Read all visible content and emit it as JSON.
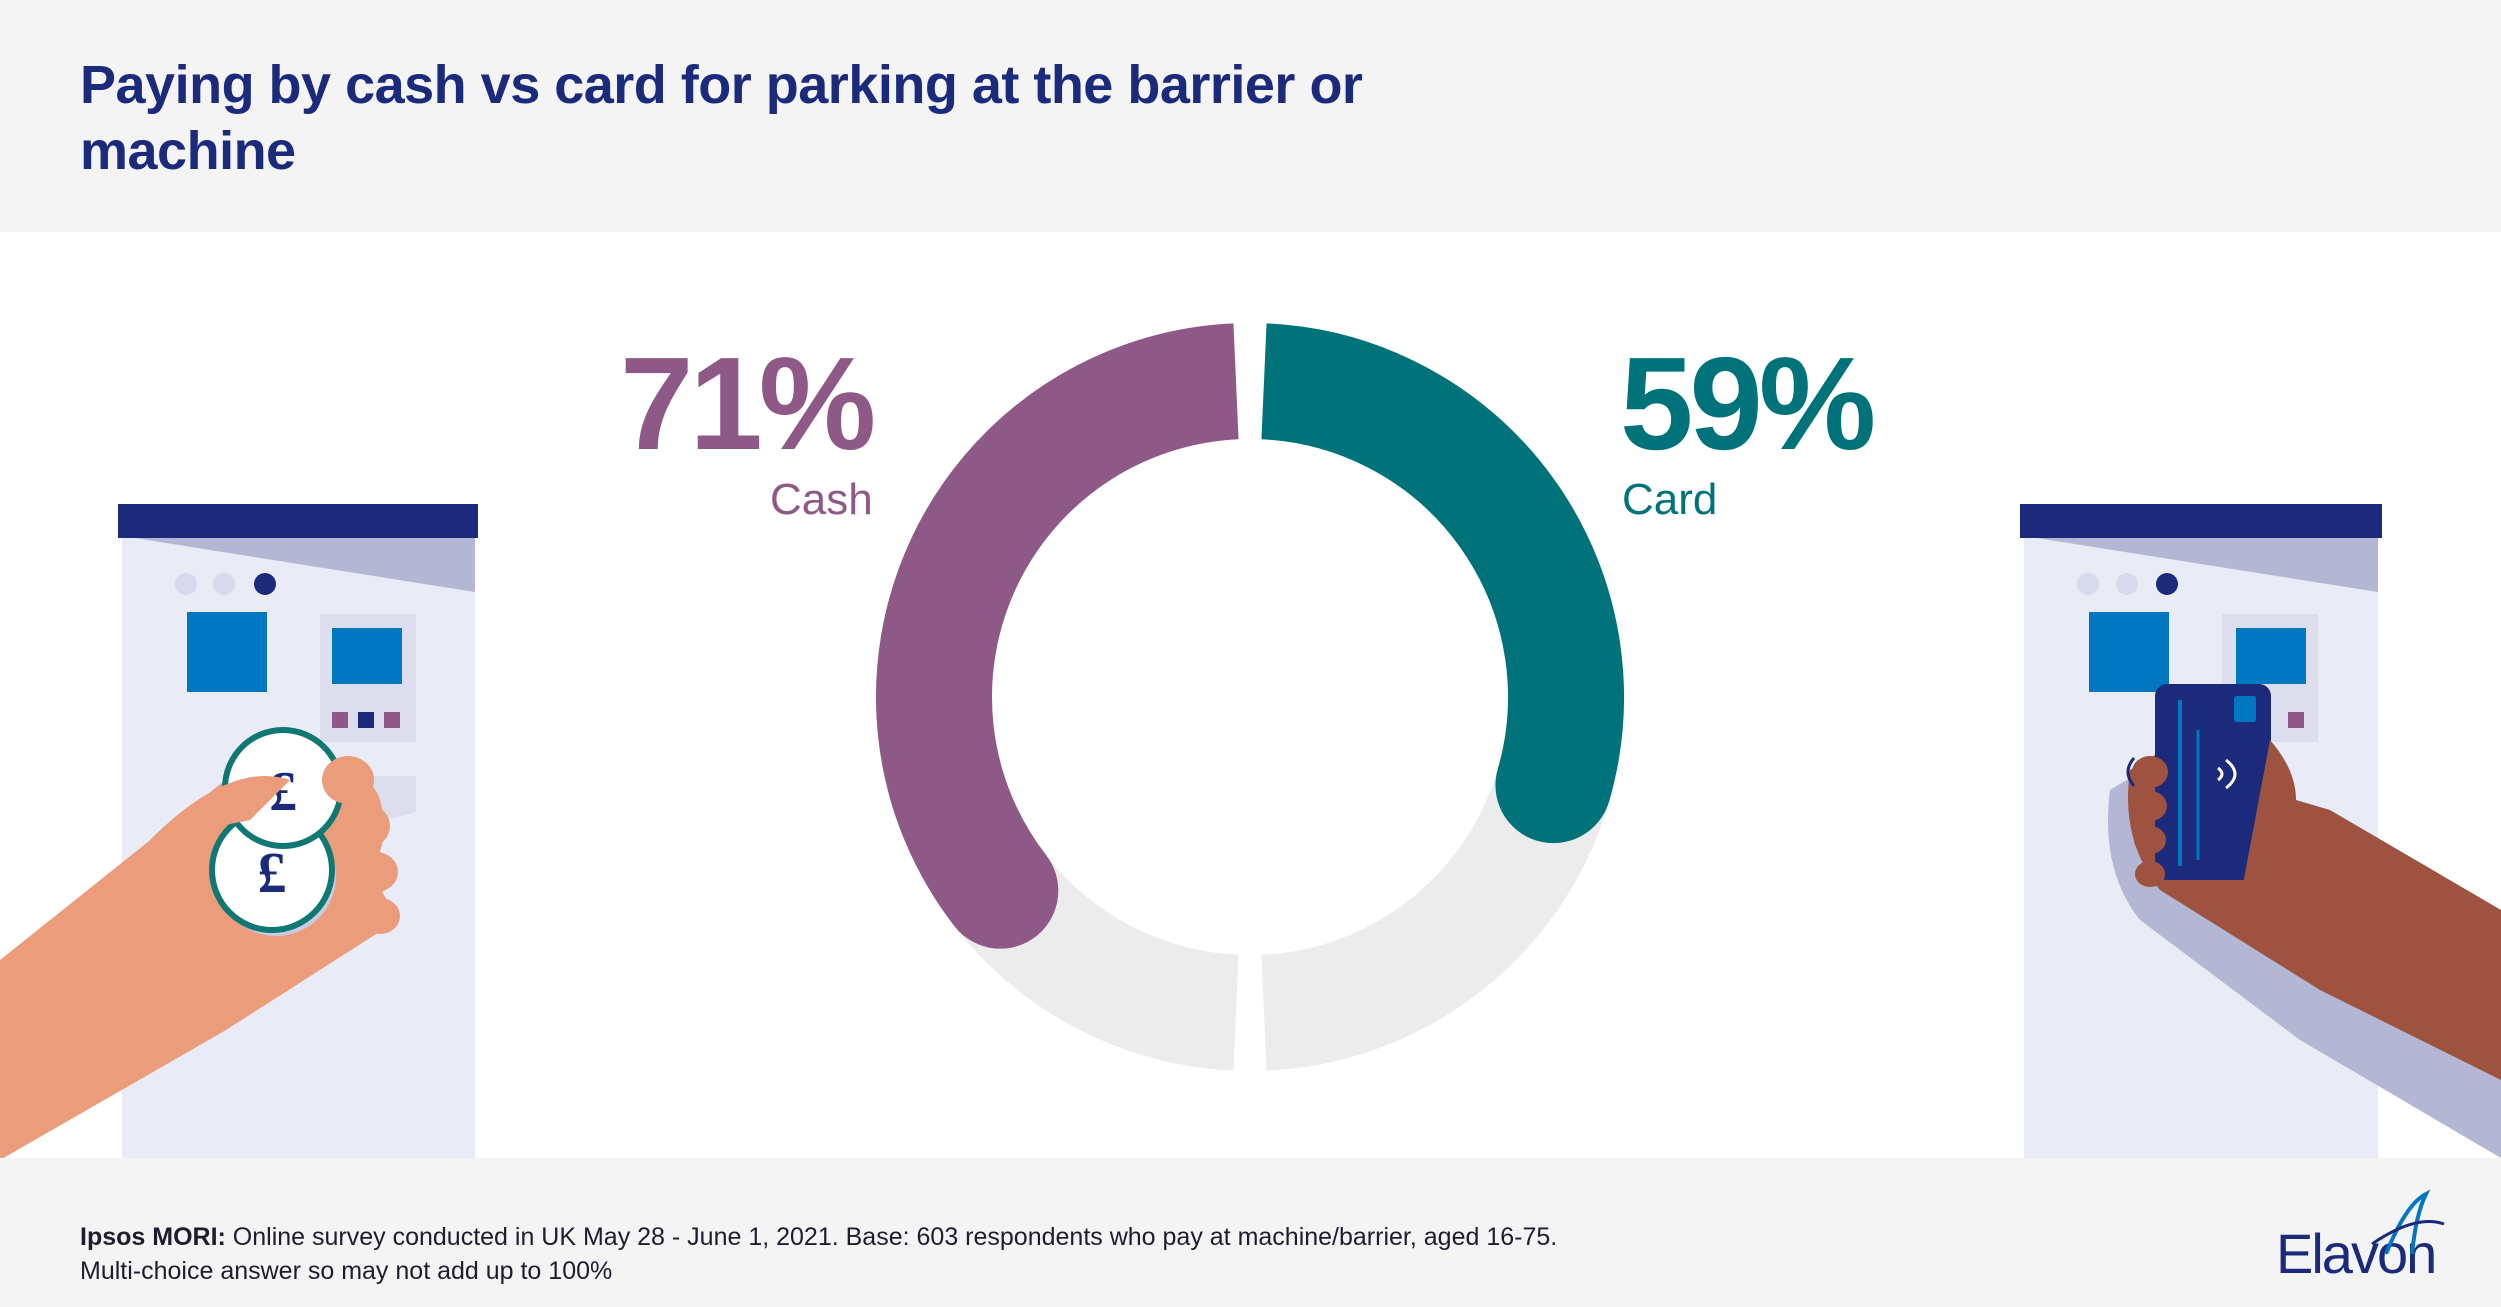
{
  "header": {
    "title": "Paying by cash vs card for parking at the barrier or machine"
  },
  "colors": {
    "cash": "#8e5986",
    "card": "#00737a",
    "track": "#ececec",
    "navy": "#1b2a7b",
    "header_bg": "#f4f4f5"
  },
  "icons": [
    "parking-machine-left",
    "hand-with-pound-coins",
    "parking-machine-right",
    "hand-with-contactless-card",
    "elavon-logo"
  ],
  "chart_data": {
    "type": "pie",
    "series": [
      {
        "name": "Cash",
        "value": 71,
        "label": "71%",
        "color": "#8e5986"
      },
      {
        "name": "Card",
        "value": 59,
        "label": "59%",
        "color": "#00737a"
      }
    ]
  },
  "footer": {
    "source_label": "Ipsos MORI:",
    "source_text": " Online survey conducted in UK May 28 - June 1, 2021. Base: 603 respondents who pay at machine/barrier, aged 16-75.",
    "note_line2": "Multi-choice answer so may not add up to 100%"
  },
  "logo": {
    "text": "Elavon"
  }
}
